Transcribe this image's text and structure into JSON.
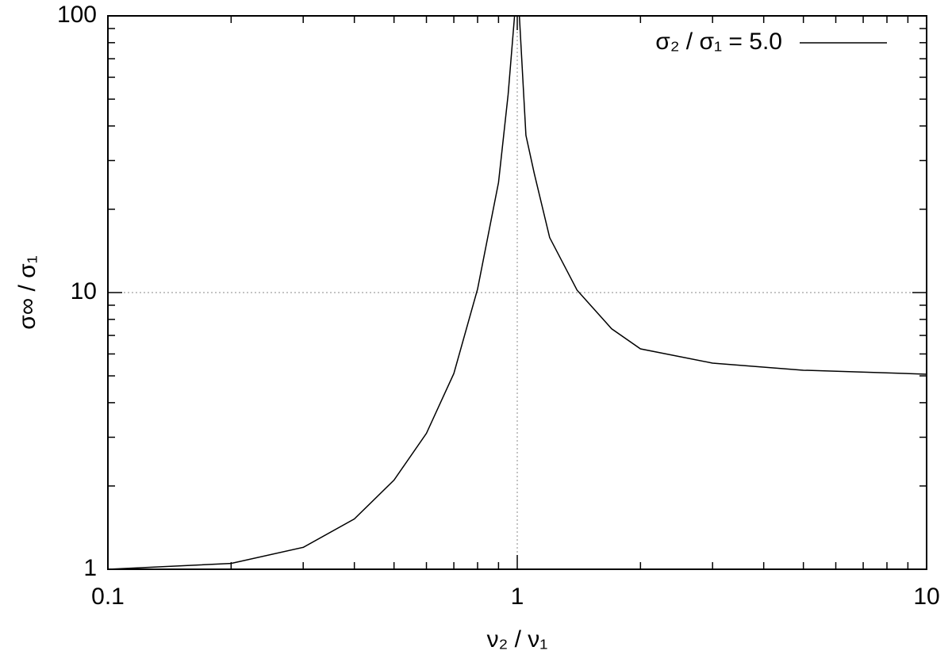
{
  "chart_data": {
    "type": "line",
    "xlabel": "ν₂ / ν₁",
    "ylabel": "σ∞ / σ₁",
    "xscale": "log",
    "yscale": "log",
    "xlim": [
      0.1,
      10
    ],
    "ylim": [
      1,
      100
    ],
    "xticks": [
      0.1,
      1,
      10
    ],
    "yticks": [
      1,
      10,
      100
    ],
    "xminorticks": [
      0.2,
      0.3,
      0.4,
      0.5,
      0.6,
      0.7,
      0.8,
      0.9,
      2,
      3,
      4,
      5,
      6,
      7,
      8,
      9
    ],
    "yminorticks": [
      2,
      3,
      4,
      5,
      6,
      7,
      8,
      9,
      20,
      30,
      40,
      50,
      60,
      70,
      80,
      90
    ],
    "grid": true,
    "legend": "upper right",
    "x": [
      0.1,
      0.2,
      0.3,
      0.4,
      0.5,
      0.6,
      0.7,
      0.8,
      0.9,
      0.95,
      0.985,
      null,
      1.012,
      1.05,
      1.1,
      1.2,
      1.4,
      1.7,
      2,
      3,
      5,
      10
    ],
    "series": [
      {
        "name": "σ₂ / σ₁ = 5.0",
        "color": "#000000",
        "values": [
          1.0,
          1.05,
          1.2,
          1.52,
          2.1,
          3.1,
          5.1,
          10.3,
          25,
          52,
          100,
          null,
          100,
          37,
          27,
          15.8,
          10.2,
          7.4,
          6.26,
          5.56,
          5.24,
          5.07
        ]
      }
    ]
  }
}
